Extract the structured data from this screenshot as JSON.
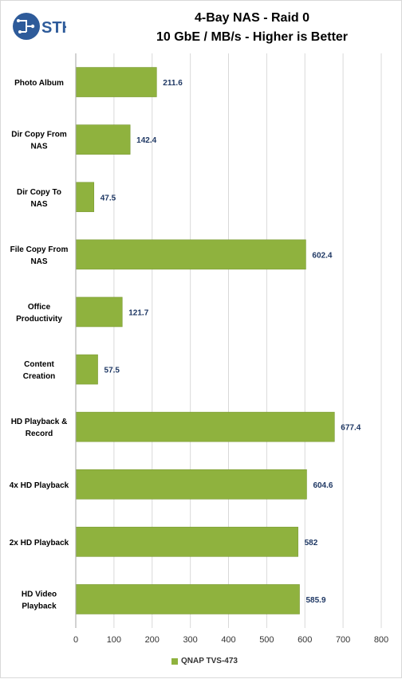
{
  "header": {
    "logo_text": "STH",
    "title_line1": "4-Bay NAS - Raid 0",
    "title_line2": "10 GbE / MB/s - Higher is Better"
  },
  "colors": {
    "bar": "#8FB23E",
    "bar_stroke": "#7a9a33",
    "value_label": "#1F3864",
    "grid": "#d9d9d9",
    "logo_blue": "#2E5B9A"
  },
  "chart_data": {
    "type": "bar",
    "orientation": "horizontal",
    "title": "4-Bay NAS - Raid 0 10 GbE / MB/s - Higher is Better",
    "categories": [
      "Photo Album",
      "Dir Copy From NAS",
      "Dir Copy To NAS",
      "File Copy From NAS",
      "Office Productivity",
      "Content Creation",
      "HD Playback & Record",
      "4x HD Playback",
      "2x HD Playback",
      "HD Video Playback"
    ],
    "category_lines": [
      [
        "Photo Album"
      ],
      [
        "Dir Copy From",
        "NAS"
      ],
      [
        "Dir Copy To",
        "NAS"
      ],
      [
        "File Copy From",
        "NAS"
      ],
      [
        "Office",
        "Productivity"
      ],
      [
        "Content",
        "Creation"
      ],
      [
        "HD Playback &",
        "Record"
      ],
      [
        "4x HD Playback"
      ],
      [
        "2x HD Playback"
      ],
      [
        "HD Video",
        "Playback"
      ]
    ],
    "series": [
      {
        "name": "QNAP TVS-473",
        "values": [
          211.6,
          142.4,
          47.5,
          602.4,
          121.7,
          57.5,
          677.4,
          604.6,
          582,
          585.9
        ],
        "labels": [
          "211.6",
          "142.4",
          "47.5",
          "602.4",
          "121.7",
          "57.5",
          "677.4",
          "604.6",
          "582",
          "585.9"
        ]
      }
    ],
    "xlim": [
      0,
      800
    ],
    "xticks": [
      0,
      100,
      200,
      300,
      400,
      500,
      600,
      700,
      800
    ],
    "grid": true,
    "legend_position": "bottom"
  }
}
